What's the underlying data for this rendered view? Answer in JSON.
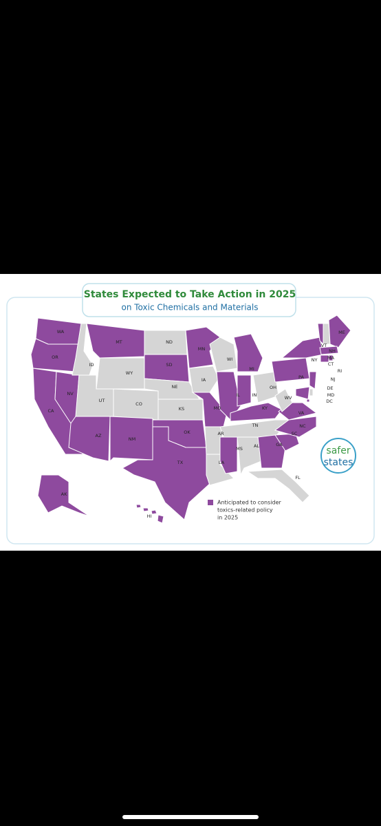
{
  "header": {
    "title": "States Expected to Take Action in 2025",
    "subtitle": "on Toxic Chemicals and Materials"
  },
  "map": {
    "states": [
      {
        "label": "WA",
        "color": "#8e4a9e"
      },
      {
        "label": "OR",
        "color": "#8e4a9e"
      },
      {
        "label": "CA",
        "color": "#8e4a9e"
      },
      {
        "label": "NV",
        "color": "#8e4a9e"
      },
      {
        "label": "ID",
        "color": "#d5d5d5"
      },
      {
        "label": "MT",
        "color": "#8e4a9e"
      },
      {
        "label": "WY",
        "color": "#d5d5d5"
      },
      {
        "label": "UT",
        "color": "#d5d5d5"
      },
      {
        "label": "CO",
        "color": "#d5d5d5"
      },
      {
        "label": "AZ",
        "color": "#8e4a9e"
      },
      {
        "label": "NM",
        "color": "#8e4a9e"
      },
      {
        "label": "ND",
        "color": "#d5d5d5"
      },
      {
        "label": "SD",
        "color": "#8e4a9e"
      },
      {
        "label": "NE",
        "color": "#d5d5d5"
      },
      {
        "label": "KS",
        "color": "#d5d5d5"
      },
      {
        "label": "OK",
        "color": "#8e4a9e"
      },
      {
        "label": "TX",
        "color": "#8e4a9e"
      },
      {
        "label": "MN",
        "color": "#8e4a9e"
      },
      {
        "label": "IA",
        "color": "#d5d5d5"
      },
      {
        "label": "MO",
        "color": "#8e4a9e"
      },
      {
        "label": "AR",
        "color": "#d5d5d5"
      },
      {
        "label": "LA",
        "color": "#d5d5d5"
      },
      {
        "label": "WI",
        "color": "#d5d5d5"
      },
      {
        "label": "IL",
        "color": "#8e4a9e"
      },
      {
        "label": "MI",
        "color": "#8e4a9e"
      },
      {
        "label": "IN",
        "color": "#8e4a9e"
      },
      {
        "label": "OH",
        "color": "#d5d5d5"
      },
      {
        "label": "KY",
        "color": "#8e4a9e"
      },
      {
        "label": "TN",
        "color": "#d5d5d5"
      },
      {
        "label": "MS",
        "color": "#8e4a9e"
      },
      {
        "label": "AL",
        "color": "#d5d5d5"
      },
      {
        "label": "GA",
        "color": "#8e4a9e"
      },
      {
        "label": "FL",
        "color": "#d5d5d5"
      },
      {
        "label": "SC",
        "color": "#8e4a9e"
      },
      {
        "label": "NC",
        "color": "#8e4a9e"
      },
      {
        "label": "VA",
        "color": "#8e4a9e"
      },
      {
        "label": "WV",
        "color": "#d5d5d5"
      },
      {
        "label": "PA",
        "color": "#8e4a9e"
      },
      {
        "label": "NY",
        "color": "#8e4a9e"
      },
      {
        "label": "VT",
        "color": "#8e4a9e"
      },
      {
        "label": "NH",
        "color": "#d5d5d5"
      },
      {
        "label": "ME",
        "color": "#8e4a9e"
      },
      {
        "label": "MA",
        "color": "#8e4a9e"
      },
      {
        "label": "CT",
        "color": "#8e4a9e"
      },
      {
        "label": "RI",
        "color": "#8e4a9e"
      },
      {
        "label": "NJ",
        "color": "#8e4a9e"
      },
      {
        "label": "DE",
        "color": "#d5d5d5"
      },
      {
        "label": "MD",
        "color": "#8e4a9e"
      },
      {
        "label": "DC",
        "color": "#8e4a9e"
      },
      {
        "label": "AK",
        "color": "#8e4a9e"
      },
      {
        "label": "HI",
        "color": "#8e4a9e"
      }
    ]
  },
  "legend": {
    "color": "#8e4a9e",
    "lines": [
      "Anticipated to consider",
      "toxics-related policy",
      "in 2025"
    ]
  },
  "logo": {
    "lines": [
      "safer",
      "states"
    ]
  }
}
